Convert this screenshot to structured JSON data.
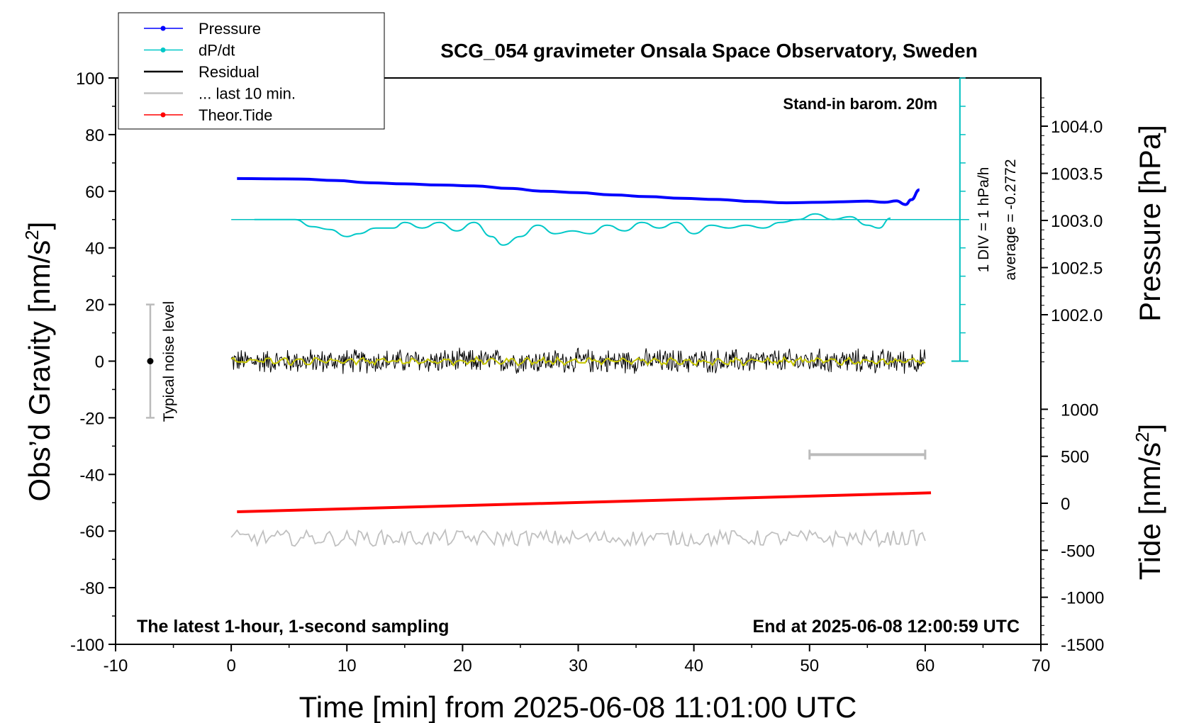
{
  "chart_data": {
    "type": "line",
    "title": "SCG_054 gravimeter Onsala Space Observatory, Sweden",
    "xlabel": "Time [min] from 2025-06-08 11:01:00 UTC",
    "ylabel": "Obs’d Gravity [nm/s",
    "ylabel_sup": "2",
    "ylabel_close": "]",
    "y2label": "Pressure [hPa]",
    "y3label": "Tide [nm/s",
    "y3label_sup": "2",
    "y3label_close": "]",
    "xlim": [
      -10,
      70
    ],
    "ylim": [
      -100,
      100
    ],
    "xticks": [
      -10,
      0,
      10,
      20,
      30,
      40,
      50,
      60,
      70
    ],
    "yticks": [
      -100,
      -80,
      -60,
      -40,
      -20,
      0,
      20,
      40,
      60,
      80,
      100
    ],
    "pressure_ticks": [
      1004.0,
      1003.5,
      1003.0,
      1002.5,
      1002.0
    ],
    "pressure_tick_labels": [
      "1004.0",
      "1003.5",
      "1003.0",
      "1002.5",
      "1002.0"
    ],
    "tide_ticks": [
      1000,
      500,
      0,
      -500,
      -1000,
      -1500
    ],
    "tide_tick_labels": [
      "1000",
      "500",
      "0",
      "-500",
      "-1000",
      "-1500"
    ],
    "legend": [
      {
        "name": "Pressure",
        "color": "#0000ff",
        "marker": true
      },
      {
        "name": "dP/dt",
        "color": "#00c8c8",
        "marker": true
      },
      {
        "name": "Residual",
        "color": "#000000",
        "marker": false
      },
      {
        "name": "... last 10 min.",
        "color": "#c0c0c0",
        "marker": false
      },
      {
        "name": "Theor.Tide",
        "color": "#ff0000",
        "marker": true
      }
    ],
    "legend_position": "top-left",
    "annotations": {
      "stand_in": "Stand-in barom. 20m",
      "latest": "The latest 1-hour, 1-second sampling",
      "end_at": "End at 2025-06-08 12:00:59 UTC",
      "noise": "Typical noise level",
      "div": "1 DIV = 1 hPa/h",
      "average": "average = -0.2772"
    },
    "noise_bar": {
      "x": -7,
      "center": 0,
      "low": -20,
      "high": 20
    },
    "last10_bar": {
      "x_start": 50,
      "x_end": 60,
      "y": -33
    },
    "series": [
      {
        "name": "Pressure",
        "color": "#0000ff",
        "x": [
          0.5,
          3,
          6,
          9,
          12,
          15,
          18,
          21,
          24,
          27,
          30,
          33,
          36,
          39,
          42,
          45,
          48,
          51,
          53,
          55,
          56.5,
          57.5,
          58.3,
          58.8,
          59.5
        ],
        "y": [
          64.5,
          64.4,
          64.3,
          63.8,
          63.0,
          62.6,
          62.2,
          61.9,
          61.0,
          60.0,
          59.5,
          58.7,
          58.1,
          57.5,
          57.1,
          56.4,
          55.9,
          56.1,
          56.3,
          56.5,
          56.1,
          56.6,
          55.3,
          57.0,
          60.5
        ]
      },
      {
        "name": "dP/dt",
        "color": "#00c8c8",
        "x": [
          2,
          4,
          5.5,
          7,
          8.5,
          10,
          11,
          12.5,
          14,
          15,
          16.5,
          18,
          19.5,
          21,
          22.5,
          23.5,
          25,
          26.5,
          28,
          29.5,
          31,
          32.5,
          34,
          35.5,
          37,
          38.5,
          40,
          41.5,
          43,
          44.5,
          46,
          47.5,
          49,
          50.5,
          52,
          53.5,
          55,
          56,
          57
        ],
        "y": [
          50,
          50,
          50,
          47.5,
          46.5,
          44,
          45,
          47,
          47,
          49,
          47,
          49,
          46,
          49,
          44,
          41,
          44,
          48,
          45,
          46,
          45,
          48,
          46,
          49,
          47,
          49,
          45,
          48,
          47,
          48,
          47,
          49,
          50,
          52,
          50,
          51,
          48,
          47,
          50.5
        ]
      },
      {
        "name": "Residual",
        "color": "#000000",
        "range": [
          0,
          60
        ],
        "center": 0,
        "amplitude": 4.5
      },
      {
        "name": "... last 10 min.",
        "color": "#c0c0c0",
        "range": [
          0,
          60
        ],
        "center": -62.5,
        "amplitude": 2.8
      },
      {
        "name": "Theor.Tide",
        "color": "#ff0000",
        "x": [
          0.5,
          60.5
        ],
        "y": [
          -53.2,
          -46.5
        ]
      }
    ],
    "dpdt_zero_line": 50,
    "grid": false
  }
}
